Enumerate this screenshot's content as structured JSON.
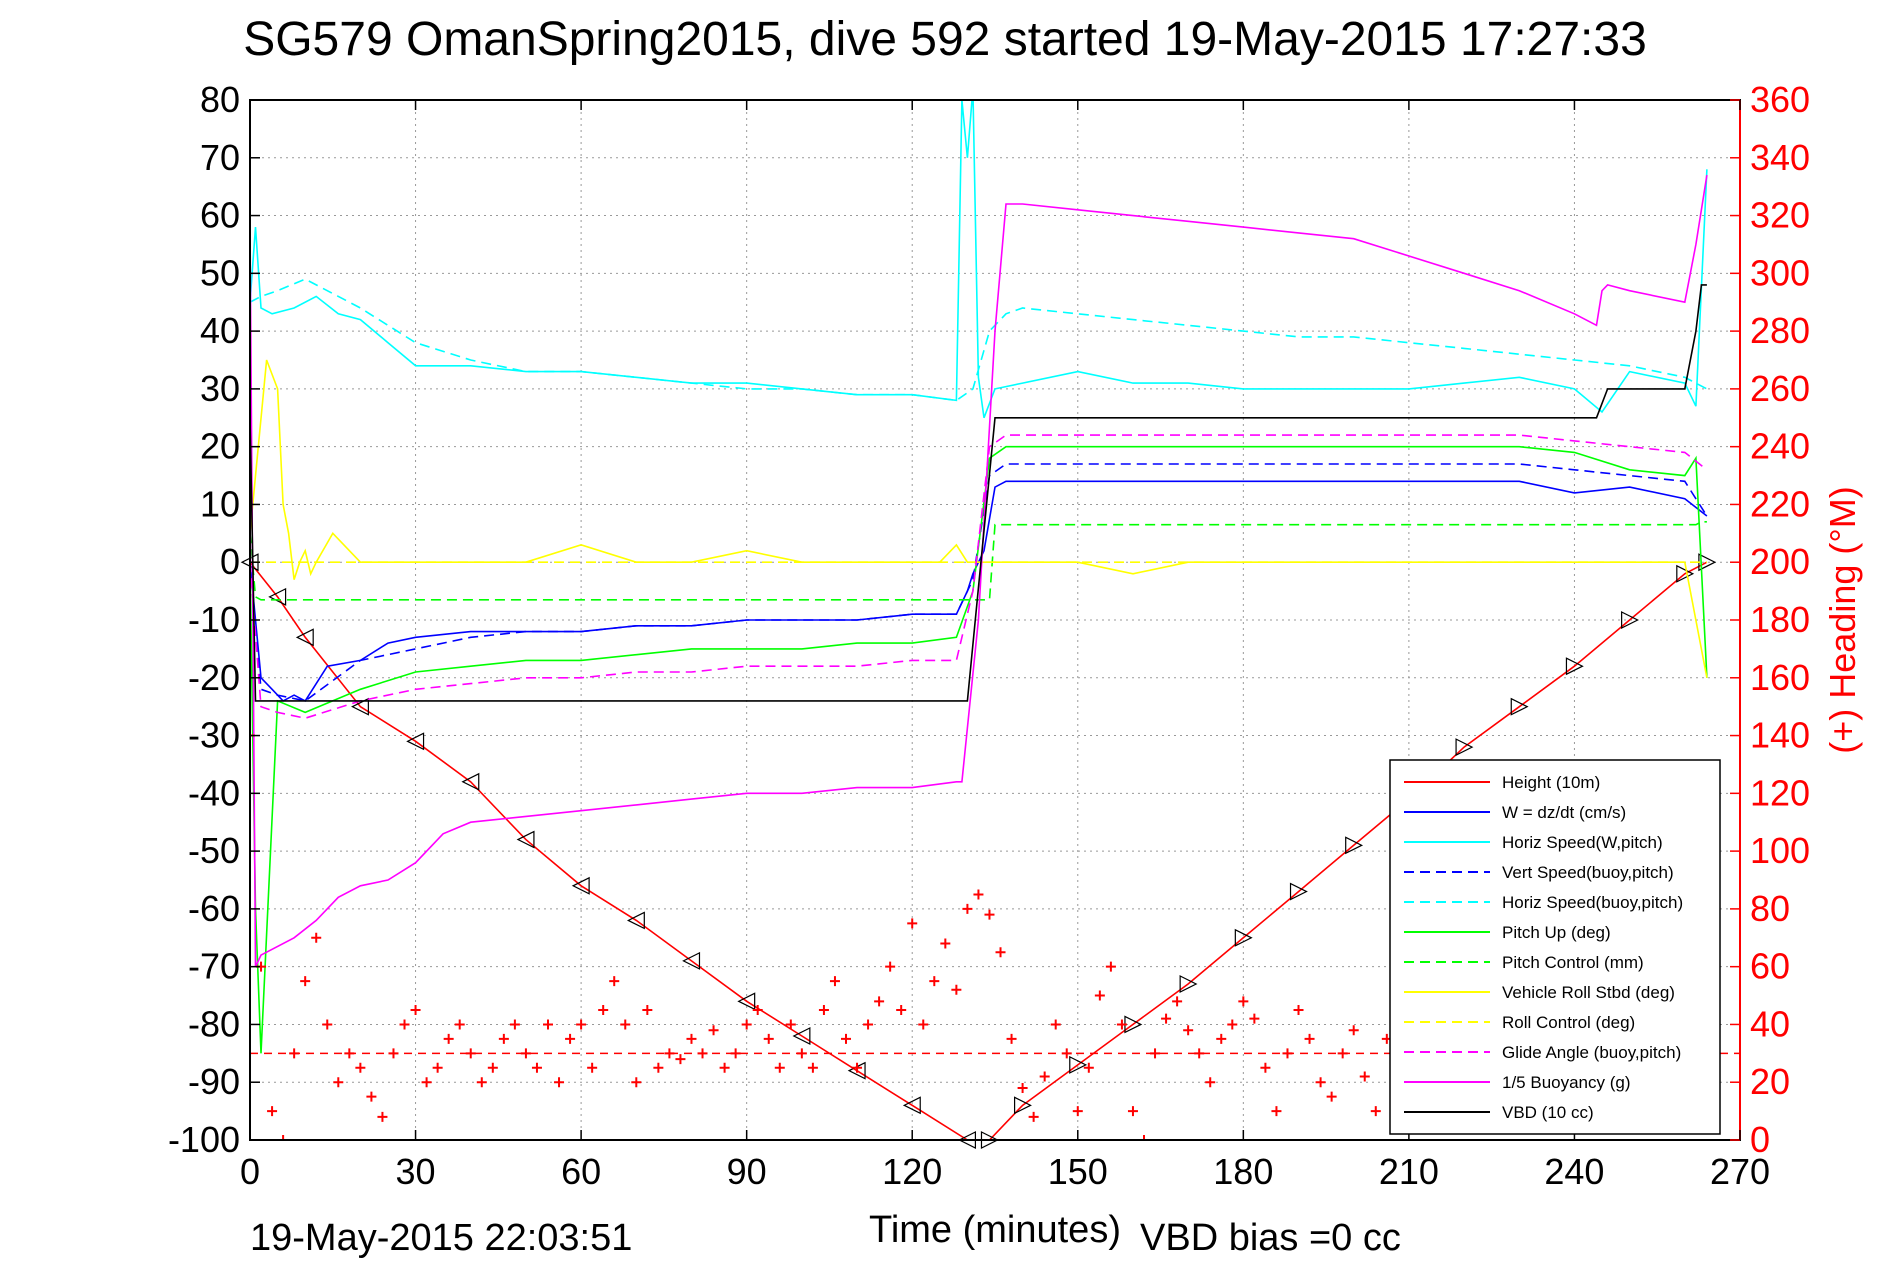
{
  "chart_data": {
    "type": "line",
    "title": "SG579 OmanSpring2015, dive 592 started 19-May-2015 17:27:33",
    "xlabel": "Time (minutes)",
    "ylabel": "",
    "ylabel_right": "(+) Heading (°M)",
    "xlim": [
      0,
      270
    ],
    "ylim": [
      -100,
      80
    ],
    "ylim_right": [
      0,
      360
    ],
    "xticks": [
      "0",
      "30",
      "60",
      "90",
      "120",
      "150",
      "180",
      "210",
      "240",
      "270"
    ],
    "yticks": [
      "80",
      "70",
      "60",
      "50",
      "40",
      "30",
      "20",
      "10",
      "0",
      "-10",
      "-20",
      "-30",
      "-40",
      "-50",
      "-60",
      "-70",
      "-80",
      "-90",
      "-100"
    ],
    "yticks_right": [
      "360",
      "340",
      "320",
      "300",
      "280",
      "260",
      "240",
      "220",
      "200",
      "180",
      "160",
      "140",
      "120",
      "100",
      "80",
      "60",
      "40",
      "20",
      "0"
    ],
    "grid": true,
    "legend_position": "bottom-right",
    "footer_left": "19-May-2015 22:03:51",
    "footer_right": "VBD bias =0 cc",
    "colors": {
      "red": "#ff0000",
      "blue": "#0000ff",
      "cyan": "#00ffff",
      "green": "#00ff00",
      "yellow": "#ffff00",
      "magenta": "#ff00ff",
      "black": "#000000"
    },
    "series": [
      {
        "name": "Height (10m)",
        "color": "#ff0000",
        "style": "solid",
        "x": [
          0,
          5,
          10,
          20,
          30,
          40,
          50,
          60,
          70,
          80,
          90,
          100,
          110,
          120,
          130,
          134,
          140,
          150,
          160,
          170,
          180,
          190,
          200,
          210,
          220,
          230,
          240,
          250,
          260,
          264
        ],
        "y": [
          0,
          -6,
          -13,
          -25,
          -31,
          -38,
          -48,
          -56,
          -62,
          -69,
          -76,
          -82,
          -88,
          -94,
          -100,
          -100,
          -94,
          -87,
          -80,
          -73,
          -65,
          -57,
          -49,
          -41,
          -32,
          -25,
          -18,
          -10,
          -2,
          0
        ]
      },
      {
        "name": "W = dz/dt (cm/s)",
        "color": "#0000ff",
        "style": "solid",
        "x": [
          0,
          1,
          2,
          4,
          6,
          8,
          10,
          14,
          20,
          25,
          30,
          40,
          50,
          60,
          70,
          80,
          90,
          100,
          110,
          120,
          128,
          130,
          131,
          133,
          135,
          137,
          140,
          150,
          160,
          170,
          180,
          190,
          200,
          210,
          220,
          230,
          240,
          250,
          260,
          264
        ],
        "y": [
          0,
          -10,
          -20,
          -22,
          -24,
          -23,
          -24,
          -18,
          -17,
          -14,
          -13,
          -12,
          -12,
          -12,
          -11,
          -11,
          -10,
          -10,
          -10,
          -9,
          -9,
          -5,
          -2,
          2,
          13,
          14,
          14,
          14,
          14,
          14,
          14,
          14,
          14,
          14,
          14,
          14,
          12,
          13,
          11,
          8
        ]
      },
      {
        "name": "Horiz Speed(W,pitch)",
        "color": "#00ffff",
        "style": "solid",
        "x": [
          0,
          1,
          2,
          4,
          8,
          12,
          16,
          20,
          25,
          30,
          40,
          50,
          60,
          70,
          80,
          90,
          100,
          110,
          120,
          128,
          129,
          130,
          131,
          132,
          133,
          135,
          140,
          150,
          160,
          170,
          180,
          190,
          200,
          210,
          220,
          230,
          240,
          245,
          250,
          260,
          262,
          264
        ],
        "y": [
          45,
          58,
          44,
          43,
          44,
          46,
          43,
          42,
          38,
          34,
          34,
          33,
          33,
          32,
          31,
          31,
          30,
          29,
          29,
          28,
          80,
          70,
          82,
          32,
          25,
          30,
          31,
          33,
          31,
          31,
          30,
          30,
          30,
          30,
          31,
          32,
          30,
          26,
          33,
          31,
          27,
          68
        ]
      },
      {
        "name": "Vert Speed(buoy,pitch)",
        "color": "#0000ff",
        "style": "dashed",
        "x": [
          0,
          2,
          5,
          10,
          20,
          30,
          40,
          50,
          60,
          70,
          80,
          90,
          100,
          110,
          120,
          128,
          131,
          134,
          137,
          140,
          150,
          160,
          170,
          180,
          190,
          200,
          210,
          220,
          230,
          240,
          250,
          260,
          264
        ],
        "y": [
          0,
          -22,
          -23,
          -24,
          -17,
          -15,
          -13,
          -12,
          -12,
          -11,
          -11,
          -10,
          -10,
          -10,
          -9,
          -9,
          -3,
          15,
          17,
          17,
          17,
          17,
          17,
          17,
          17,
          17,
          17,
          17,
          17,
          16,
          15,
          14,
          8
        ]
      },
      {
        "name": "Horiz Speed(buoy,pitch)",
        "color": "#00ffff",
        "style": "dashed",
        "x": [
          0,
          2,
          5,
          10,
          20,
          30,
          40,
          50,
          60,
          70,
          80,
          90,
          100,
          110,
          120,
          128,
          131,
          134,
          137,
          140,
          150,
          160,
          170,
          180,
          190,
          200,
          210,
          220,
          230,
          240,
          250,
          260,
          264
        ],
        "y": [
          45,
          46,
          47,
          49,
          44,
          38,
          35,
          33,
          33,
          32,
          31,
          30,
          30,
          29,
          29,
          28,
          30,
          40,
          43,
          44,
          43,
          42,
          41,
          40,
          39,
          39,
          38,
          37,
          36,
          35,
          34,
          32,
          30
        ]
      },
      {
        "name": "Pitch Up (deg)",
        "color": "#00ff00",
        "style": "solid",
        "x": [
          0,
          1,
          2,
          5,
          10,
          20,
          30,
          40,
          50,
          60,
          70,
          80,
          90,
          100,
          110,
          120,
          128,
          131,
          134,
          137,
          140,
          150,
          160,
          170,
          180,
          190,
          200,
          210,
          220,
          230,
          240,
          250,
          260,
          262,
          264
        ],
        "y": [
          0,
          -60,
          -85,
          -24,
          -26,
          -22,
          -19,
          -18,
          -17,
          -17,
          -16,
          -15,
          -15,
          -15,
          -14,
          -14,
          -13,
          -5,
          18,
          20,
          20,
          20,
          20,
          20,
          20,
          20,
          20,
          20,
          20,
          20,
          19,
          16,
          15,
          18,
          -20
        ]
      },
      {
        "name": "Pitch Control (mm)",
        "color": "#00ff00",
        "style": "dashed",
        "x": [
          0,
          1,
          2,
          128,
          129,
          134,
          135,
          262,
          263,
          264
        ],
        "y": [
          5,
          -6,
          -6.5,
          -6.5,
          -6.5,
          -6.5,
          6.5,
          6.5,
          7,
          7
        ]
      },
      {
        "name": "Vehicle Roll Stbd (deg)",
        "color": "#ffff00",
        "style": "solid",
        "x": [
          0,
          3,
          5,
          6,
          7,
          8,
          9,
          10,
          11,
          12,
          15,
          20,
          25,
          30,
          40,
          50,
          60,
          70,
          80,
          90,
          100,
          110,
          120,
          125,
          128,
          130,
          135,
          140,
          150,
          160,
          170,
          180,
          190,
          200,
          210,
          220,
          230,
          240,
          250,
          260,
          264
        ],
        "y": [
          5,
          35,
          30,
          10,
          5,
          -3,
          0,
          2,
          -2,
          0,
          5,
          0,
          0,
          0,
          0,
          0,
          3,
          0,
          0,
          2,
          0,
          0,
          0,
          0,
          3,
          0,
          0,
          0,
          0,
          -2,
          0,
          0,
          0,
          0,
          0,
          0,
          0,
          0,
          0,
          0,
          -20
        ]
      },
      {
        "name": "Roll Control (deg)",
        "color": "#ffff00",
        "style": "dashed",
        "x": [
          0,
          5,
          10,
          30,
          60,
          90,
          120,
          128,
          130,
          135,
          140,
          160,
          180,
          200,
          220,
          240,
          260,
          264
        ],
        "y": [
          0,
          0,
          0,
          0,
          0,
          0,
          0,
          0,
          0,
          0,
          0,
          0,
          0,
          0,
          0,
          0,
          0,
          0
        ]
      },
      {
        "name": "Glide Angle (buoy,pitch)",
        "color": "#ff00ff",
        "style": "dashed",
        "x": [
          0,
          2,
          5,
          10,
          20,
          30,
          40,
          50,
          60,
          70,
          80,
          90,
          100,
          110,
          120,
          128,
          131,
          134,
          137,
          140,
          150,
          160,
          170,
          180,
          190,
          200,
          210,
          220,
          230,
          240,
          250,
          260,
          264
        ],
        "y": [
          0,
          -25,
          -26,
          -27,
          -24,
          -22,
          -21,
          -20,
          -20,
          -19,
          -19,
          -18,
          -18,
          -18,
          -17,
          -17,
          -5,
          20,
          22,
          22,
          22,
          22,
          22,
          22,
          22,
          22,
          22,
          22,
          22,
          21,
          20,
          19,
          16
        ]
      },
      {
        "name": "1/5 Buoyancy (g)",
        "color": "#ff00ff",
        "style": "solid",
        "x": [
          0,
          1,
          2,
          4,
          8,
          12,
          16,
          20,
          25,
          30,
          35,
          40,
          50,
          60,
          70,
          80,
          90,
          100,
          110,
          120,
          128,
          129,
          132,
          135,
          137,
          140,
          150,
          160,
          170,
          180,
          190,
          200,
          210,
          220,
          230,
          240,
          244,
          245,
          246,
          250,
          260,
          262,
          264
        ],
        "y": [
          58,
          -70,
          -68,
          -67,
          -65,
          -62,
          -58,
          -56,
          -55,
          -52,
          -47,
          -45,
          -44,
          -43,
          -42,
          -41,
          -40,
          -40,
          -39,
          -39,
          -38,
          -38,
          -10,
          40,
          62,
          62,
          61,
          60,
          59,
          58,
          57,
          56,
          53,
          50,
          47,
          43,
          41,
          47,
          48,
          47,
          45,
          55,
          67
        ]
      },
      {
        "name": "VBD (10 cc)",
        "color": "#000000",
        "style": "solid",
        "x": [
          0,
          1,
          2,
          130,
          135,
          137,
          244,
          246,
          260,
          262,
          263,
          264
        ],
        "y": [
          25,
          -24,
          -24,
          -24,
          25,
          25,
          25,
          30,
          30,
          40,
          48,
          48
        ]
      },
      {
        "name": "Heading",
        "color": "#ff0000",
        "style": "markers",
        "axis": "right",
        "x": [
          0,
          2,
          4,
          6,
          8,
          10,
          12,
          14,
          16,
          18,
          20,
          22,
          24,
          26,
          28,
          30,
          32,
          34,
          36,
          38,
          40,
          42,
          44,
          46,
          48,
          50,
          52,
          54,
          56,
          58,
          60,
          62,
          64,
          66,
          68,
          70,
          72,
          74,
          76,
          78,
          80,
          82,
          84,
          86,
          88,
          90,
          92,
          94,
          96,
          98,
          100,
          102,
          104,
          106,
          108,
          110,
          112,
          114,
          116,
          118,
          120,
          122,
          124,
          126,
          128,
          130,
          132,
          134,
          136,
          138,
          140,
          142,
          144,
          146,
          148,
          150,
          152,
          154,
          156,
          158,
          160,
          162,
          164,
          166,
          168,
          170,
          172,
          174,
          176,
          178,
          180,
          182,
          184,
          186,
          188,
          190,
          192,
          194,
          196,
          198,
          200,
          202,
          204,
          206,
          208,
          210,
          212,
          214,
          216,
          218,
          220,
          222,
          224,
          226,
          228,
          230,
          232,
          234,
          236,
          238,
          240,
          242,
          244,
          246,
          248,
          250,
          252,
          254,
          256,
          258,
          260,
          262
        ],
        "y": [
          140,
          60,
          10,
          0,
          30,
          55,
          70,
          40,
          20,
          30,
          25,
          15,
          8,
          30,
          40,
          45,
          20,
          25,
          35,
          40,
          30,
          20,
          25,
          35,
          40,
          30,
          25,
          40,
          20,
          35,
          40,
          25,
          45,
          55,
          40,
          20,
          45,
          25,
          30,
          28,
          35,
          30,
          38,
          25,
          30,
          40,
          45,
          35,
          25,
          40,
          30,
          25,
          45,
          55,
          35,
          25,
          40,
          48,
          60,
          45,
          75,
          40,
          55,
          68,
          52,
          80,
          85,
          78,
          65,
          35,
          18,
          8,
          22,
          40,
          30,
          10,
          25,
          50,
          60,
          40,
          10,
          0,
          30,
          42,
          48,
          38,
          30,
          20,
          35,
          40,
          48,
          42,
          25,
          10,
          30,
          45,
          35,
          20,
          15,
          30,
          38,
          22,
          10,
          35,
          42,
          25,
          15,
          30,
          38,
          20,
          12,
          30,
          38,
          25,
          8,
          32,
          40,
          20,
          10,
          28,
          36,
          22,
          5,
          30,
          22,
          15,
          30,
          28,
          18,
          25,
          32,
          28
        ]
      }
    ]
  }
}
